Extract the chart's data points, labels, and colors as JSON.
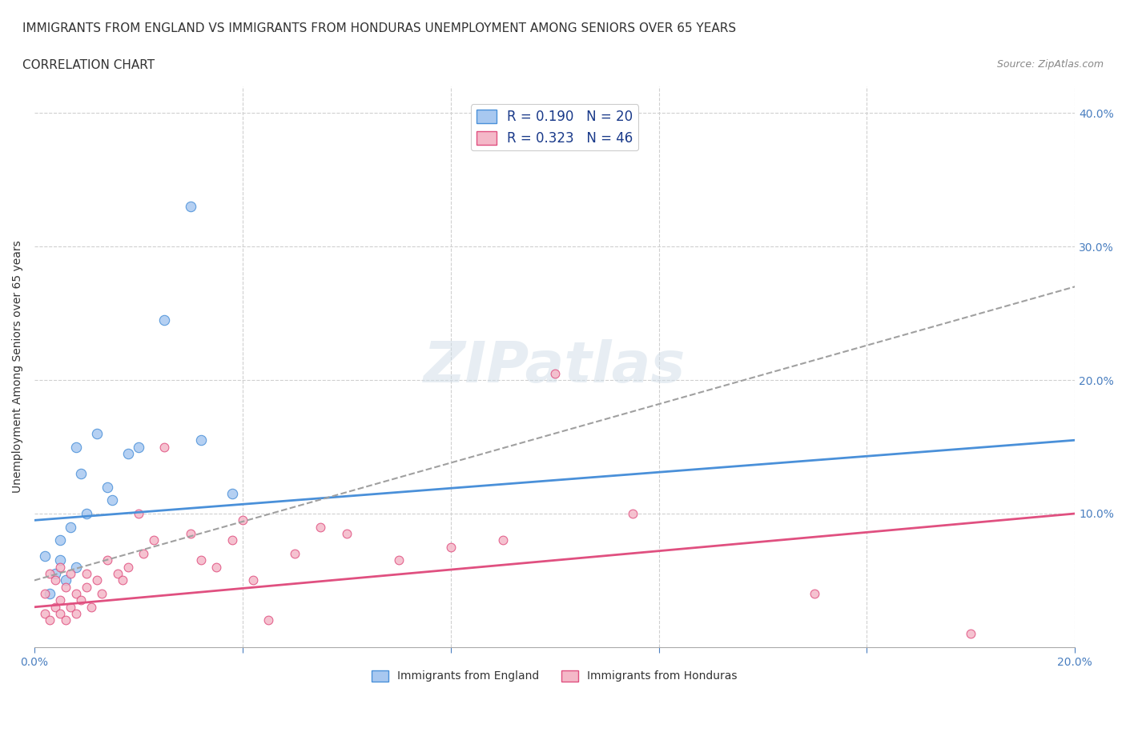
{
  "title_line1": "IMMIGRANTS FROM ENGLAND VS IMMIGRANTS FROM HONDURAS UNEMPLOYMENT AMONG SENIORS OVER 65 YEARS",
  "title_line2": "CORRELATION CHART",
  "source_text": "Source: ZipAtlas.com",
  "xlabel": "",
  "ylabel": "Unemployment Among Seniors over 65 years",
  "xlim": [
    0.0,
    0.2
  ],
  "ylim": [
    0.0,
    0.42
  ],
  "x_ticks": [
    0.0,
    0.04,
    0.08,
    0.12,
    0.16,
    0.2
  ],
  "x_tick_labels": [
    "0.0%",
    "",
    "",
    "",
    "",
    "20.0%"
  ],
  "y_ticks": [
    0.0,
    0.1,
    0.2,
    0.3,
    0.4
  ],
  "y_tick_labels": [
    "",
    "10.0%",
    "20.0%",
    "30.0%",
    "40.0%"
  ],
  "legend_r1": "R = 0.190   N = 20",
  "legend_r2": "R = 0.323   N = 46",
  "england_color": "#a8c8f0",
  "england_line_color": "#4a90d9",
  "honduras_color": "#f4b8c8",
  "honduras_line_color": "#e05080",
  "trend_line_color": "#a0a0a0",
  "watermark": "ZIPatlas",
  "england_scatter_x": [
    0.002,
    0.003,
    0.004,
    0.005,
    0.005,
    0.006,
    0.007,
    0.008,
    0.008,
    0.009,
    0.01,
    0.012,
    0.014,
    0.015,
    0.018,
    0.02,
    0.025,
    0.03,
    0.032,
    0.038
  ],
  "england_scatter_y": [
    0.068,
    0.04,
    0.055,
    0.065,
    0.08,
    0.05,
    0.09,
    0.06,
    0.15,
    0.13,
    0.1,
    0.16,
    0.12,
    0.11,
    0.145,
    0.15,
    0.245,
    0.33,
    0.155,
    0.115
  ],
  "honduras_scatter_x": [
    0.002,
    0.002,
    0.003,
    0.003,
    0.004,
    0.004,
    0.005,
    0.005,
    0.005,
    0.006,
    0.006,
    0.007,
    0.007,
    0.008,
    0.008,
    0.009,
    0.01,
    0.01,
    0.011,
    0.012,
    0.013,
    0.014,
    0.016,
    0.017,
    0.018,
    0.02,
    0.021,
    0.023,
    0.025,
    0.03,
    0.032,
    0.035,
    0.038,
    0.04,
    0.042,
    0.045,
    0.05,
    0.055,
    0.06,
    0.07,
    0.08,
    0.09,
    0.1,
    0.115,
    0.15,
    0.18
  ],
  "honduras_scatter_y": [
    0.025,
    0.04,
    0.02,
    0.055,
    0.03,
    0.05,
    0.025,
    0.035,
    0.06,
    0.02,
    0.045,
    0.03,
    0.055,
    0.025,
    0.04,
    0.035,
    0.045,
    0.055,
    0.03,
    0.05,
    0.04,
    0.065,
    0.055,
    0.05,
    0.06,
    0.1,
    0.07,
    0.08,
    0.15,
    0.085,
    0.065,
    0.06,
    0.08,
    0.095,
    0.05,
    0.02,
    0.07,
    0.09,
    0.085,
    0.065,
    0.075,
    0.08,
    0.205,
    0.1,
    0.04,
    0.01
  ],
  "england_trend_x": [
    0.0,
    0.2
  ],
  "england_trend_y": [
    0.095,
    0.155
  ],
  "honduras_trend_x": [
    0.0,
    0.2
  ],
  "honduras_trend_y": [
    0.03,
    0.1
  ],
  "dashed_trend_x": [
    0.0,
    0.2
  ],
  "dashed_trend_y": [
    0.05,
    0.27
  ],
  "background_color": "#ffffff",
  "grid_color": "#d0d0d0",
  "title_fontsize": 11,
  "axis_label_fontsize": 10,
  "tick_fontsize": 10,
  "legend_fontsize": 12
}
